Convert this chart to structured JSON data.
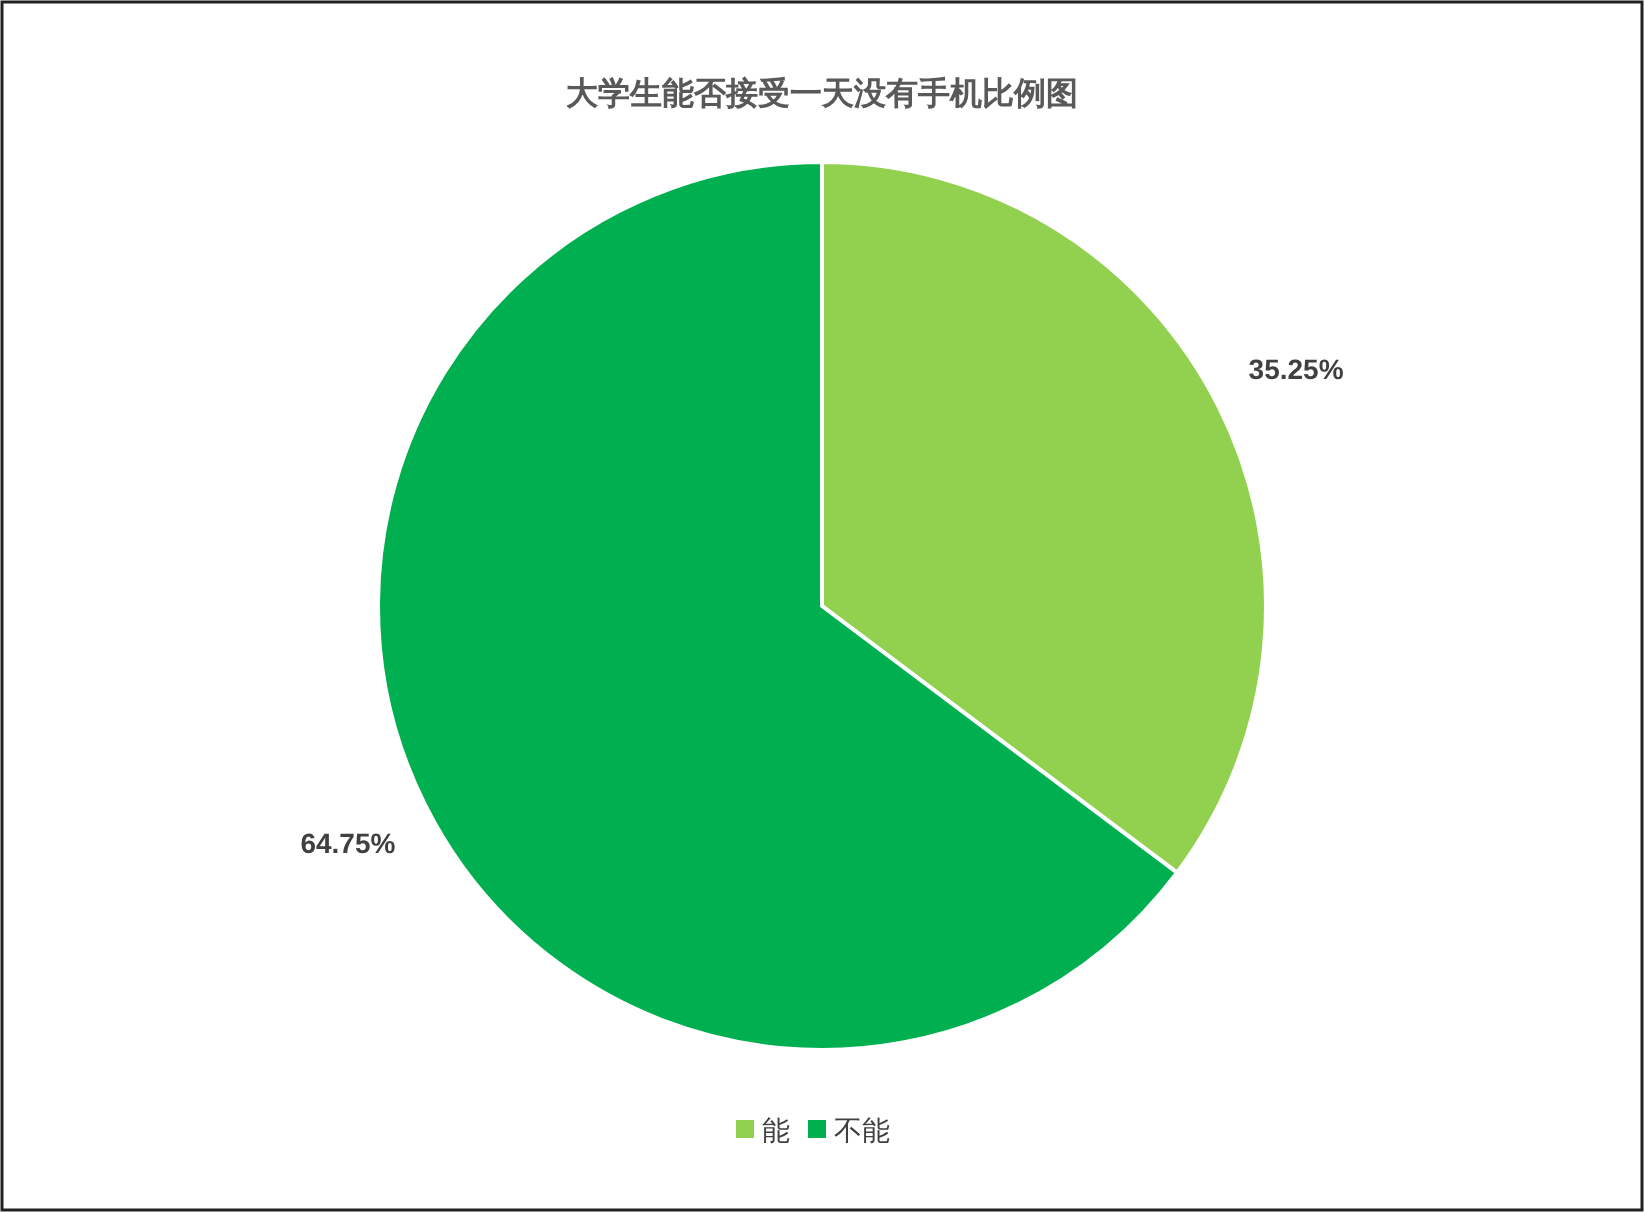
{
  "chart_data": {
    "type": "pie",
    "title": "大学生能否接受一天没有手机比例图",
    "categories": [
      "能",
      "不能"
    ],
    "values": [
      35.25,
      64.75
    ],
    "colors": [
      "#92d050",
      "#00b050"
    ],
    "value_labels": [
      "35.25%",
      "64.75%"
    ],
    "legend": "bottom"
  }
}
